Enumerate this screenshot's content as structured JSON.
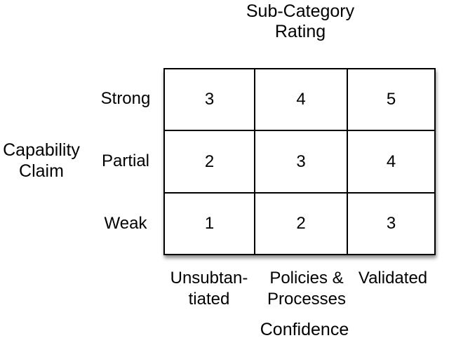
{
  "titles": {
    "top": "Sub-Category\nRating",
    "left": "Capability\nClaim",
    "bottom": "Confidence"
  },
  "matrix": {
    "row_labels": [
      "Strong",
      "Partial",
      "Weak"
    ],
    "column_labels": [
      "Unsubtan-\ntiated",
      "Policies &\nProcesses",
      "Validated"
    ],
    "values": [
      [
        "3",
        "4",
        "5"
      ],
      [
        "2",
        "3",
        "4"
      ],
      [
        "1",
        "2",
        "3"
      ]
    ]
  },
  "colors": {
    "text": "#000000",
    "grid_line": "#000000",
    "background": "#ffffff"
  }
}
